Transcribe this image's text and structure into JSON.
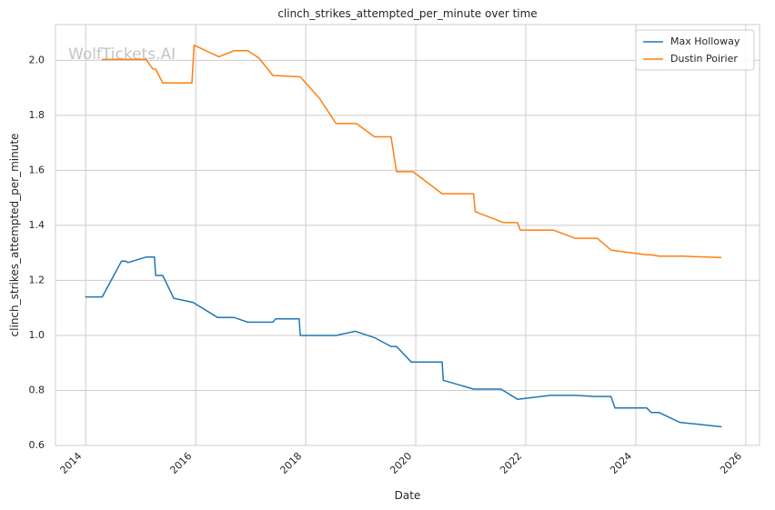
{
  "chart_data": {
    "type": "line",
    "title": "clinch_strikes_attempted_per_minute over time",
    "xlabel": "Date",
    "ylabel": "clinch_strikes_attempted_per_minute",
    "watermark": "WolfTickets.AI",
    "xlim": [
      2013.45,
      2026.25
    ],
    "ylim": [
      0.6,
      2.13
    ],
    "x_ticks": [
      2014,
      2016,
      2018,
      2020,
      2022,
      2024,
      2026
    ],
    "x_tick_labels": [
      "2014",
      "2016",
      "2018",
      "2020",
      "2022",
      "2024",
      "2026"
    ],
    "y_ticks": [
      0.6,
      0.8,
      1.0,
      1.2,
      1.4,
      1.6,
      1.8,
      2.0
    ],
    "y_tick_labels": [
      "0.6",
      "0.8",
      "1.0",
      "1.2",
      "1.4",
      "1.6",
      "1.8",
      "2.0"
    ],
    "grid": true,
    "legend_position": "top-right",
    "series": [
      {
        "name": "Max Holloway",
        "color": "#1f77b4",
        "points": [
          [
            2014.0,
            1.14
          ],
          [
            2014.3,
            1.14
          ],
          [
            2014.65,
            1.27
          ],
          [
            2014.72,
            1.27
          ],
          [
            2014.77,
            1.265
          ],
          [
            2015.1,
            1.285
          ],
          [
            2015.25,
            1.285
          ],
          [
            2015.27,
            1.218
          ],
          [
            2015.4,
            1.218
          ],
          [
            2015.6,
            1.135
          ],
          [
            2015.95,
            1.12
          ],
          [
            2016.4,
            1.065
          ],
          [
            2016.7,
            1.065
          ],
          [
            2016.95,
            1.048
          ],
          [
            2017.4,
            1.048
          ],
          [
            2017.45,
            1.06
          ],
          [
            2017.88,
            1.06
          ],
          [
            2017.9,
            1.0
          ],
          [
            2018.55,
            1.0
          ],
          [
            2018.9,
            1.015
          ],
          [
            2019.25,
            0.992
          ],
          [
            2019.55,
            0.96
          ],
          [
            2019.65,
            0.96
          ],
          [
            2019.92,
            0.903
          ],
          [
            2020.48,
            0.903
          ],
          [
            2020.5,
            0.837
          ],
          [
            2021.05,
            0.805
          ],
          [
            2021.55,
            0.805
          ],
          [
            2021.85,
            0.768
          ],
          [
            2022.45,
            0.782
          ],
          [
            2022.9,
            0.782
          ],
          [
            2023.25,
            0.778
          ],
          [
            2023.55,
            0.778
          ],
          [
            2023.62,
            0.736
          ],
          [
            2024.2,
            0.736
          ],
          [
            2024.28,
            0.72
          ],
          [
            2024.42,
            0.72
          ],
          [
            2024.8,
            0.684
          ],
          [
            2025.55,
            0.668
          ]
        ]
      },
      {
        "name": "Dustin Poirier",
        "color": "#ff7f0e",
        "points": [
          [
            2014.3,
            2.003
          ],
          [
            2015.1,
            2.003
          ],
          [
            2015.22,
            1.968
          ],
          [
            2015.27,
            1.968
          ],
          [
            2015.4,
            1.918
          ],
          [
            2015.93,
            1.918
          ],
          [
            2015.97,
            2.055
          ],
          [
            2016.42,
            2.013
          ],
          [
            2016.7,
            2.035
          ],
          [
            2016.95,
            2.035
          ],
          [
            2017.15,
            2.008
          ],
          [
            2017.4,
            1.945
          ],
          [
            2017.9,
            1.94
          ],
          [
            2018.25,
            1.862
          ],
          [
            2018.55,
            1.77
          ],
          [
            2018.92,
            1.77
          ],
          [
            2019.25,
            1.722
          ],
          [
            2019.55,
            1.722
          ],
          [
            2019.65,
            1.595
          ],
          [
            2019.95,
            1.595
          ],
          [
            2020.48,
            1.515
          ],
          [
            2021.05,
            1.515
          ],
          [
            2021.08,
            1.45
          ],
          [
            2021.6,
            1.41
          ],
          [
            2021.85,
            1.41
          ],
          [
            2021.9,
            1.383
          ],
          [
            2022.5,
            1.383
          ],
          [
            2022.9,
            1.353
          ],
          [
            2023.3,
            1.353
          ],
          [
            2023.55,
            1.31
          ],
          [
            2024.0,
            1.298
          ],
          [
            2024.2,
            1.293
          ],
          [
            2024.28,
            1.293
          ],
          [
            2024.42,
            1.288
          ],
          [
            2024.85,
            1.288
          ],
          [
            2025.55,
            1.283
          ]
        ]
      }
    ]
  }
}
